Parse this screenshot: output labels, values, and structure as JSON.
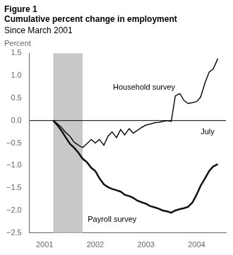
{
  "chart_data": {
    "type": "line",
    "title": [
      "Figure 1",
      "Cumulative percent change in employment"
    ],
    "subtitle": "Since March 2001",
    "ylabel": "Percent",
    "x": [
      2001.17,
      2001.25,
      2001.33,
      2001.42,
      2001.5,
      2001.58,
      2001.67,
      2001.75,
      2001.83,
      2001.92,
      2002.0,
      2002.08,
      2002.17,
      2002.25,
      2002.33,
      2002.42,
      2002.5,
      2002.58,
      2002.67,
      2002.75,
      2002.83,
      2002.92,
      2003.0,
      2003.08,
      2003.17,
      2003.25,
      2003.33,
      2003.42,
      2003.5,
      2003.58,
      2003.67,
      2003.75,
      2003.83,
      2003.92,
      2004.0,
      2004.08,
      2004.17,
      2004.25,
      2004.33,
      2004.42
    ],
    "series": [
      {
        "name": "Household survey",
        "color": "#111111",
        "values": [
          0.0,
          -0.07,
          -0.15,
          -0.27,
          -0.35,
          -0.48,
          -0.55,
          -0.6,
          -0.52,
          -0.42,
          -0.5,
          -0.42,
          -0.55,
          -0.35,
          -0.25,
          -0.38,
          -0.2,
          -0.32,
          -0.18,
          -0.28,
          -0.22,
          -0.15,
          -0.1,
          -0.08,
          -0.05,
          -0.04,
          -0.02,
          0.0,
          -0.02,
          0.55,
          0.6,
          0.45,
          0.38,
          0.4,
          0.42,
          0.52,
          0.85,
          1.08,
          1.15,
          1.38
        ]
      },
      {
        "name": "Payroll survey",
        "color": "#111111",
        "values": [
          0.0,
          -0.1,
          -0.22,
          -0.38,
          -0.52,
          -0.6,
          -0.72,
          -0.85,
          -0.92,
          -1.05,
          -1.12,
          -1.28,
          -1.42,
          -1.48,
          -1.52,
          -1.55,
          -1.58,
          -1.65,
          -1.68,
          -1.72,
          -1.78,
          -1.82,
          -1.85,
          -1.9,
          -1.93,
          -1.96,
          -2.0,
          -2.02,
          -2.05,
          -2.0,
          -1.97,
          -1.95,
          -1.92,
          -1.82,
          -1.65,
          -1.45,
          -1.28,
          -1.12,
          -1.02,
          -0.97
        ]
      }
    ],
    "xlim": [
      2000.7,
      2004.58
    ],
    "xticks": [
      2001,
      2002,
      2003,
      2004
    ],
    "ylim": [
      -2.5,
      1.5
    ],
    "yticks": [
      {
        "value": -2.5,
        "label": "−2.5"
      },
      {
        "value": -2.0,
        "label": "−2.0"
      },
      {
        "value": -1.5,
        "label": "−1.5"
      },
      {
        "value": -1.0,
        "label": "−1.0"
      },
      {
        "value": -0.5,
        "label": "−0.5"
      },
      {
        "value": 0.0,
        "label": "0.0"
      },
      0.5,
      {
        "value": 1.0,
        "label": "1.0"
      },
      1.5
    ],
    "shading": {
      "start": 2001.17,
      "end": 2001.75,
      "color": "#c8c8c8"
    },
    "hlines": [
      0
    ],
    "annotations": [
      {
        "text": "Household survey",
        "x": 2002.35,
        "y": 0.68
      },
      {
        "text": "Payroll survey",
        "x": 2001.85,
        "y": -2.25
      },
      {
        "text": "July",
        "x": 2004.08,
        "y": -0.3
      }
    ],
    "grid": false
  }
}
